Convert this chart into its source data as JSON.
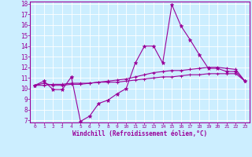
{
  "xlabel": "Windchill (Refroidissement éolien,°C)",
  "bg_color": "#cceeff",
  "line_color": "#990099",
  "xlim": [
    -0.5,
    23.5
  ],
  "ylim": [
    6.8,
    18.2
  ],
  "yticks": [
    7,
    8,
    9,
    10,
    11,
    12,
    13,
    14,
    15,
    16,
    17,
    18
  ],
  "xticks": [
    0,
    1,
    2,
    3,
    4,
    5,
    6,
    7,
    8,
    9,
    10,
    11,
    12,
    13,
    14,
    15,
    16,
    17,
    18,
    19,
    20,
    21,
    22,
    23
  ],
  "series1_x": [
    0,
    1,
    2,
    3,
    4,
    5,
    6,
    7,
    8,
    9,
    10,
    11,
    12,
    13,
    14,
    15,
    16,
    17,
    18,
    19,
    20,
    21,
    22,
    23
  ],
  "series1_y": [
    10.3,
    10.7,
    9.9,
    9.9,
    11.1,
    6.9,
    7.4,
    8.6,
    8.9,
    9.5,
    10.0,
    12.4,
    14.0,
    14.0,
    12.4,
    17.9,
    15.9,
    14.6,
    13.2,
    11.9,
    11.9,
    11.6,
    11.6,
    10.7
  ],
  "series2_x": [
    0,
    1,
    2,
    3,
    4,
    5,
    6,
    7,
    8,
    9,
    10,
    11,
    12,
    13,
    14,
    15,
    16,
    17,
    18,
    19,
    20,
    21,
    22,
    23
  ],
  "series2_y": [
    10.3,
    10.5,
    10.3,
    10.3,
    10.4,
    10.4,
    10.5,
    10.6,
    10.7,
    10.8,
    10.9,
    11.1,
    11.3,
    11.5,
    11.6,
    11.7,
    11.7,
    11.8,
    11.9,
    12.0,
    12.0,
    11.9,
    11.8,
    10.7
  ],
  "series3_x": [
    0,
    1,
    2,
    3,
    4,
    5,
    6,
    7,
    8,
    9,
    10,
    11,
    12,
    13,
    14,
    15,
    16,
    17,
    18,
    19,
    20,
    21,
    22,
    23
  ],
  "series3_y": [
    10.3,
    10.3,
    10.4,
    10.4,
    10.5,
    10.5,
    10.5,
    10.6,
    10.6,
    10.6,
    10.7,
    10.8,
    10.9,
    11.0,
    11.1,
    11.1,
    11.2,
    11.3,
    11.3,
    11.4,
    11.4,
    11.4,
    11.4,
    10.7
  ]
}
